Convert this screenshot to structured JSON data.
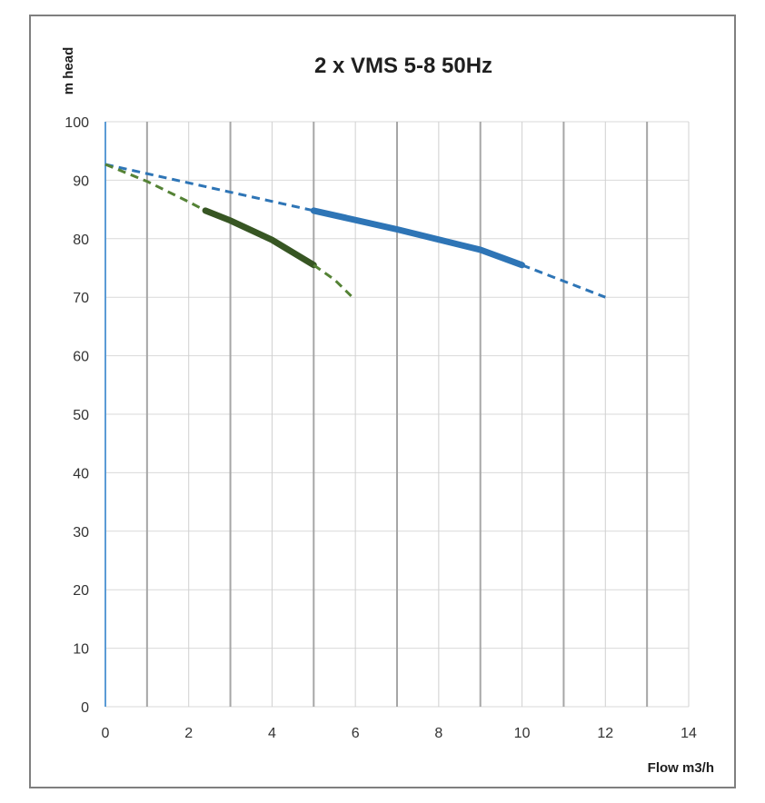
{
  "chart_data": {
    "type": "line",
    "title": "2 x VMS 5-8 50Hz",
    "xlabel": "Flow m3/h",
    "ylabel": "m head",
    "xlim": [
      0,
      14
    ],
    "ylim": [
      0,
      100
    ],
    "x_ticks": [
      0,
      2,
      4,
      6,
      8,
      10,
      12,
      14
    ],
    "y_ticks": [
      0,
      10,
      20,
      30,
      40,
      50,
      60,
      70,
      80,
      90,
      100
    ],
    "grid": {
      "vertical": true,
      "horizontal": true
    },
    "legend": "none",
    "series": [
      {
        "color": "#2e75b6",
        "style": "dashed",
        "points": [
          [
            0,
            92.7
          ],
          [
            5,
            84.8
          ]
        ]
      },
      {
        "color": "#2e75b6",
        "style": "solid",
        "points": [
          [
            5,
            84.8
          ],
          [
            7,
            81.6
          ],
          [
            9,
            78.1
          ],
          [
            10,
            75.5
          ]
        ]
      },
      {
        "color": "#2e75b6",
        "style": "dashed",
        "points": [
          [
            10,
            75.5
          ],
          [
            12,
            70.0
          ]
        ]
      },
      {
        "color": "#548235",
        "style": "dashed",
        "points": [
          [
            0,
            92.7
          ],
          [
            1,
            89.8
          ],
          [
            2,
            86.3
          ],
          [
            2.4,
            84.8
          ]
        ]
      },
      {
        "color": "#375623",
        "style": "solid",
        "points": [
          [
            2.4,
            84.8
          ],
          [
            3,
            83.1
          ],
          [
            4,
            79.8
          ],
          [
            5,
            75.5
          ]
        ]
      },
      {
        "color": "#548235",
        "style": "dashed",
        "points": [
          [
            5,
            75.5
          ],
          [
            5.5,
            73.0
          ],
          [
            5.9,
            70.2
          ]
        ]
      }
    ]
  }
}
